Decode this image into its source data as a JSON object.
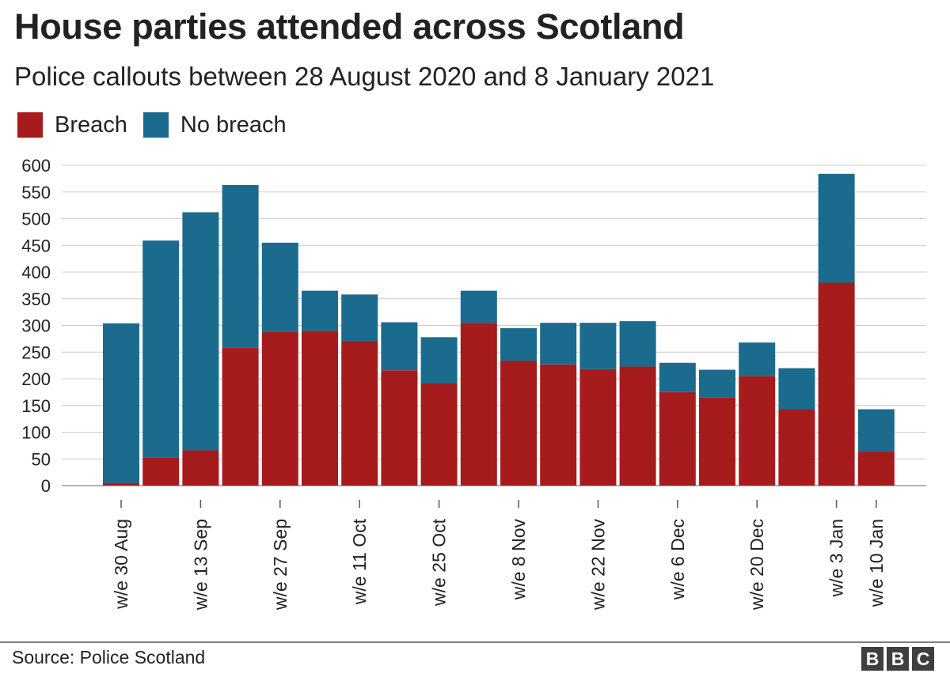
{
  "title": "House parties attended across Scotland",
  "subtitle": "Police callouts between 28 August 2020 and 8 January 2021",
  "source": "Source: Police Scotland",
  "logo_letters": [
    "B",
    "B",
    "C"
  ],
  "colors": {
    "breach": "#a61b1b",
    "no_breach": "#1b6b8e",
    "grid": "#cccccc",
    "axis": "#555555",
    "text": "#222222"
  },
  "chart_data": {
    "type": "bar",
    "stacked": true,
    "categories": [
      "w/e 30 Aug",
      "",
      "w/e 13 Sep",
      "",
      "w/e 27 Sep",
      "",
      "w/e 11 Oct",
      "",
      "w/e 25 Oct",
      "",
      "w/e 8 Nov",
      "",
      "w/e 22 Nov",
      "",
      "w/e 6 Dec",
      "",
      "w/e 20 Dec",
      "",
      "w/e 3 Jan",
      "w/e 10 Jan"
    ],
    "series": [
      {
        "name": "Breach",
        "values": [
          5,
          53,
          66,
          258,
          288,
          290,
          271,
          216,
          192,
          305,
          234,
          227,
          218,
          223,
          175,
          165,
          205,
          143,
          380,
          65
        ]
      },
      {
        "name": "No breach",
        "values": [
          299,
          406,
          446,
          305,
          167,
          75,
          87,
          90,
          86,
          60,
          61,
          78,
          87,
          85,
          55,
          52,
          63,
          77,
          204,
          78
        ]
      }
    ],
    "yticks": [
      0,
      50,
      100,
      150,
      200,
      250,
      300,
      350,
      400,
      450,
      500,
      550,
      600
    ],
    "ylim": [
      0,
      600
    ],
    "grid": true,
    "legend_position": "top-left",
    "xlabel": "",
    "ylabel": ""
  }
}
